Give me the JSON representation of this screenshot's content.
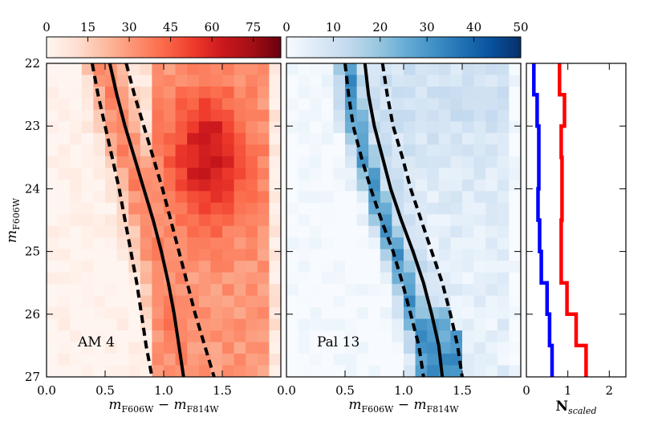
{
  "chart_data": {
    "type": "heatmap",
    "ylabel": "m_F606W",
    "ylabel_main": "m",
    "ylabel_sub": "F606W",
    "xlabel_main": "m",
    "xlabel_sub1": "F606W",
    "xlabel_minus": " − ",
    "xlabel_sub2": "F814W",
    "xlabel": "m_F606W − m_F814W",
    "ylim": [
      27,
      22
    ],
    "y_ticks": [
      22,
      23,
      24,
      25,
      26,
      27
    ],
    "y_tick_labels": [
      "22",
      "23",
      "24",
      "25",
      "26",
      "27"
    ],
    "panels": [
      {
        "name": "AM 4",
        "label": "AM 4",
        "colormap": "Reds",
        "xlim": [
          0.0,
          2.0
        ],
        "x_ticks": [
          0.0,
          0.5,
          1.0,
          1.5
        ],
        "x_tick_labels": [
          "0.0",
          "0.5",
          "1.0",
          "1.5"
        ],
        "colorbar": {
          "range": [
            0,
            85
          ],
          "ticks": [
            0,
            15,
            30,
            45,
            60,
            75
          ],
          "tick_labels": [
            "0",
            "15",
            "30",
            "45",
            "60",
            "75"
          ]
        },
        "ridge_line": [
          [
            0.54,
            22.0
          ],
          [
            0.6,
            22.5
          ],
          [
            0.67,
            23.0
          ],
          [
            0.75,
            23.5
          ],
          [
            0.83,
            24.0
          ],
          [
            0.91,
            24.5
          ],
          [
            0.98,
            25.0
          ],
          [
            1.04,
            25.5
          ],
          [
            1.09,
            26.0
          ],
          [
            1.13,
            26.5
          ],
          [
            1.17,
            27.0
          ]
        ],
        "lower_bound": [
          [
            0.39,
            22.0
          ],
          [
            0.44,
            22.5
          ],
          [
            0.5,
            23.0
          ],
          [
            0.56,
            23.5
          ],
          [
            0.62,
            24.0
          ],
          [
            0.67,
            24.5
          ],
          [
            0.72,
            25.0
          ],
          [
            0.77,
            25.5
          ],
          [
            0.81,
            26.0
          ],
          [
            0.85,
            26.5
          ],
          [
            0.9,
            27.0
          ]
        ],
        "upper_bound": [
          [
            0.68,
            22.0
          ],
          [
            0.75,
            22.5
          ],
          [
            0.83,
            23.0
          ],
          [
            0.91,
            23.5
          ],
          [
            0.99,
            24.0
          ],
          [
            1.06,
            24.5
          ],
          [
            1.13,
            25.0
          ],
          [
            1.2,
            25.5
          ],
          [
            1.27,
            26.0
          ],
          [
            1.35,
            26.5
          ],
          [
            1.43,
            27.0
          ]
        ]
      },
      {
        "name": "Pal 13",
        "label": "Pal 13",
        "colormap": "Blues",
        "xlim": [
          0.0,
          2.0
        ],
        "x_ticks": [
          0.0,
          0.5,
          1.0,
          1.5
        ],
        "x_tick_labels": [
          "0.0",
          "0.5",
          "1.0",
          "1.5"
        ],
        "colorbar": {
          "range": [
            0,
            50
          ],
          "ticks": [
            0,
            10,
            20,
            30,
            40,
            50
          ],
          "tick_labels": [
            "0",
            "10",
            "20",
            "30",
            "40",
            "50"
          ]
        },
        "ridge_line": [
          [
            0.67,
            22.0
          ],
          [
            0.7,
            22.5
          ],
          [
            0.75,
            23.0
          ],
          [
            0.82,
            23.5
          ],
          [
            0.89,
            24.0
          ],
          [
            0.98,
            24.5
          ],
          [
            1.08,
            25.0
          ],
          [
            1.17,
            25.5
          ],
          [
            1.24,
            26.0
          ],
          [
            1.3,
            26.5
          ],
          [
            1.33,
            27.0
          ]
        ],
        "lower_bound": [
          [
            0.5,
            22.0
          ],
          [
            0.53,
            22.5
          ],
          [
            0.57,
            23.0
          ],
          [
            0.64,
            23.5
          ],
          [
            0.72,
            24.0
          ],
          [
            0.81,
            24.5
          ],
          [
            0.91,
            25.0
          ],
          [
            0.99,
            25.5
          ],
          [
            1.06,
            26.0
          ],
          [
            1.13,
            26.5
          ],
          [
            1.17,
            27.0
          ]
        ],
        "upper_bound": [
          [
            0.82,
            22.0
          ],
          [
            0.86,
            22.5
          ],
          [
            0.91,
            23.0
          ],
          [
            0.99,
            23.5
          ],
          [
            1.06,
            24.0
          ],
          [
            1.15,
            24.5
          ],
          [
            1.24,
            25.0
          ],
          [
            1.33,
            25.5
          ],
          [
            1.4,
            26.0
          ],
          [
            1.46,
            26.5
          ],
          [
            1.5,
            27.0
          ]
        ]
      },
      {
        "name": "histogram",
        "type": "step",
        "xlabel_main": "N",
        "xlabel_sub": "scaled",
        "xlabel": "N_scaled",
        "xlim": [
          0.0,
          2.4
        ],
        "x_ticks": [
          0,
          1,
          2
        ],
        "x_tick_labels": [
          "0",
          "1",
          "2"
        ],
        "series": [
          {
            "name": "AM 4",
            "color": "#ff0000",
            "bins": [
              [
                22.0,
                22.5,
                0.8
              ],
              [
                22.5,
                23.0,
                0.92
              ],
              [
                23.0,
                23.5,
                0.84
              ],
              [
                23.5,
                24.0,
                0.86
              ],
              [
                24.0,
                24.5,
                0.86
              ],
              [
                24.5,
                25.0,
                0.84
              ],
              [
                25.0,
                25.5,
                0.84
              ],
              [
                25.5,
                26.0,
                0.98
              ],
              [
                26.0,
                26.5,
                1.2
              ],
              [
                26.5,
                27.0,
                1.44
              ]
            ]
          },
          {
            "name": "Pal 13",
            "color": "#0000ff",
            "bins": [
              [
                22.0,
                22.5,
                0.18
              ],
              [
                22.5,
                23.0,
                0.26
              ],
              [
                23.0,
                23.5,
                0.3
              ],
              [
                23.5,
                24.0,
                0.3
              ],
              [
                24.0,
                24.5,
                0.28
              ],
              [
                24.5,
                25.0,
                0.32
              ],
              [
                25.0,
                25.5,
                0.36
              ],
              [
                25.5,
                26.0,
                0.5
              ],
              [
                26.0,
                26.5,
                0.56
              ],
              [
                26.5,
                27.0,
                0.62
              ]
            ]
          }
        ]
      }
    ]
  }
}
